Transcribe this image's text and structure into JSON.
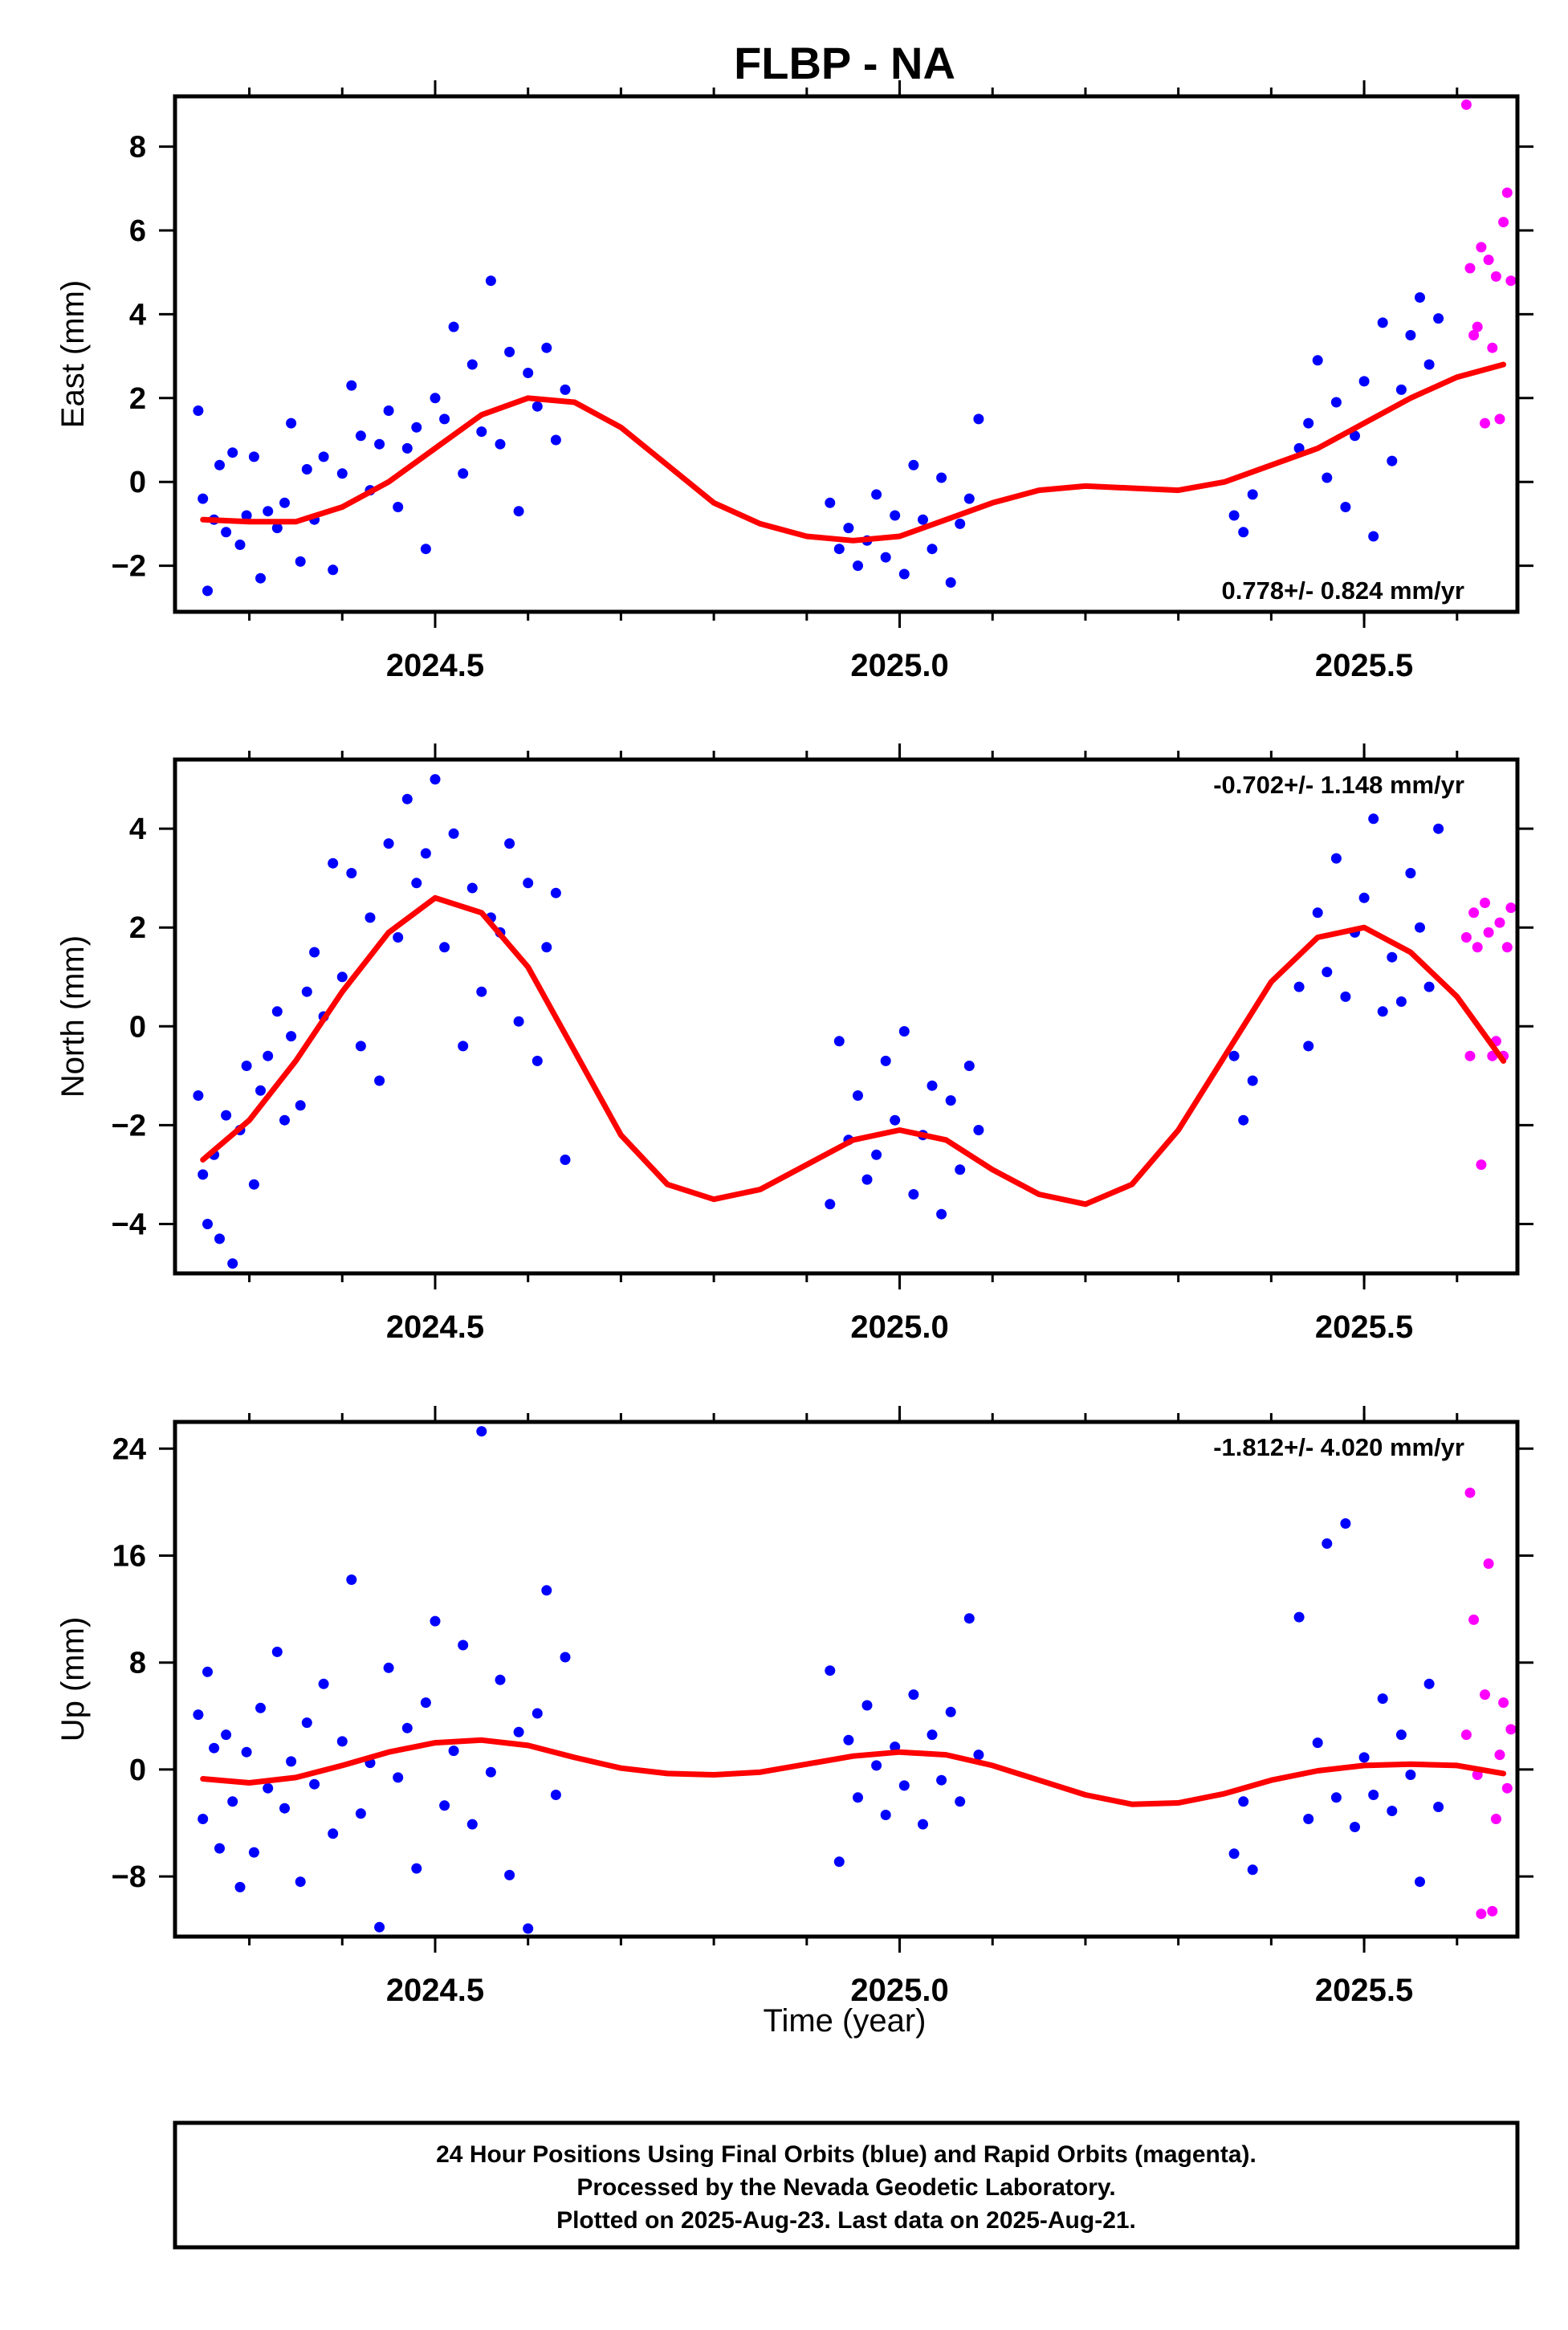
{
  "title": "FLBP - NA",
  "xlabel": "Time (year)",
  "colors": {
    "final": "#0000ff",
    "rapid": "#ff00ff",
    "model": "#ff0000",
    "frame": "#000000"
  },
  "footer": {
    "line1": "24 Hour Positions Using Final Orbits (blue) and Rapid Orbits (magenta).",
    "line2": "Processed by the Nevada Geodetic Laboratory.",
    "line3": "Plotted on 2025-Aug-23. Last data on 2025-Aug-21."
  },
  "chart_data": [
    {
      "type": "scatter",
      "ylabel": "East (mm)",
      "xlim": [
        2024.22,
        2025.665
      ],
      "ylim": [
        -3.1,
        9.2
      ],
      "xticks": [
        2024.5,
        2025.0,
        2025.5
      ],
      "xtick_labels": [
        "2024.5",
        "2025.0",
        "2025.5"
      ],
      "yticks": [
        -2,
        0,
        2,
        4,
        6,
        8
      ],
      "ytick_labels": [
        "−2",
        "0",
        "2",
        "4",
        "6",
        "8"
      ],
      "rate": "0.778+/- 0.824 mm/yr",
      "rate_position": "bottom-right",
      "series": [
        {
          "kind": "final",
          "x": [
            2024.245,
            2024.25,
            2024.255,
            2024.262,
            2024.268,
            2024.275,
            2024.282,
            2024.29,
            2024.297,
            2024.305,
            2024.312,
            2024.32,
            2024.33,
            2024.338,
            2024.345,
            2024.355,
            2024.362,
            2024.37,
            2024.38,
            2024.39,
            2024.4,
            2024.41,
            2024.42,
            2024.43,
            2024.44,
            2024.45,
            2024.46,
            2024.47,
            2024.48,
            2024.49,
            2024.5,
            2024.51,
            2024.52,
            2024.53,
            2024.54,
            2024.55,
            2024.56,
            2024.57,
            2024.58,
            2024.59,
            2024.6,
            2024.61,
            2024.62,
            2024.63,
            2024.64,
            2024.925,
            2024.935,
            2024.945,
            2024.955,
            2024.965,
            2024.975,
            2024.985,
            2024.995,
            2025.005,
            2025.015,
            2025.025,
            2025.035,
            2025.045,
            2025.055,
            2025.065,
            2025.075,
            2025.085,
            2025.36,
            2025.37,
            2025.38,
            2025.43,
            2025.44,
            2025.45,
            2025.46,
            2025.47,
            2025.48,
            2025.49,
            2025.5,
            2025.51,
            2025.52,
            2025.53,
            2025.54,
            2025.55,
            2025.56,
            2025.57,
            2025.58
          ],
          "y": [
            1.7,
            -0.4,
            -2.6,
            -0.9,
            0.4,
            -1.2,
            0.7,
            -1.5,
            -0.8,
            0.6,
            -2.3,
            -0.7,
            -1.1,
            -0.5,
            1.4,
            -1.9,
            0.3,
            -0.9,
            0.6,
            -2.1,
            0.2,
            2.3,
            1.1,
            -0.2,
            0.9,
            1.7,
            -0.6,
            0.8,
            1.3,
            -1.6,
            2.0,
            1.5,
            3.7,
            0.2,
            2.8,
            1.2,
            4.8,
            0.9,
            3.1,
            -0.7,
            2.6,
            1.8,
            3.2,
            1.0,
            2.2,
            -0.5,
            -1.6,
            -1.1,
            -2.0,
            -1.4,
            -0.3,
            -1.8,
            -0.8,
            -2.2,
            0.4,
            -0.9,
            -1.6,
            0.1,
            -2.4,
            -1.0,
            -0.4,
            1.5,
            -0.8,
            -1.2,
            -0.3,
            0.8,
            1.4,
            2.9,
            0.1,
            1.9,
            -0.6,
            1.1,
            2.4,
            -1.3,
            3.8,
            0.5,
            2.2,
            3.5,
            4.4,
            2.8,
            3.9
          ]
        },
        {
          "kind": "rapid",
          "x": [
            2025.61,
            2025.614,
            2025.618,
            2025.622,
            2025.626,
            2025.63,
            2025.634,
            2025.638,
            2025.642,
            2025.646,
            2025.65,
            2025.654,
            2025.658
          ],
          "y": [
            9.0,
            5.1,
            3.5,
            3.7,
            5.6,
            1.4,
            5.3,
            3.2,
            4.9,
            1.5,
            6.2,
            6.9,
            4.8
          ]
        },
        {
          "kind": "model",
          "x": [
            2024.25,
            2024.3,
            2024.35,
            2024.4,
            2024.45,
            2024.5,
            2024.55,
            2024.6,
            2024.65,
            2024.7,
            2024.75,
            2024.8,
            2024.85,
            2024.9,
            2024.95,
            2025.0,
            2025.05,
            2025.1,
            2025.15,
            2025.2,
            2025.25,
            2025.3,
            2025.35,
            2025.4,
            2025.45,
            2025.5,
            2025.55,
            2025.6,
            2025.65
          ],
          "y": [
            -0.9,
            -0.95,
            -0.95,
            -0.6,
            0.0,
            0.8,
            1.6,
            2.0,
            1.9,
            1.3,
            0.4,
            -0.5,
            -1.0,
            -1.3,
            -1.4,
            -1.3,
            -0.9,
            -0.5,
            -0.2,
            -0.1,
            -0.15,
            -0.2,
            0.0,
            0.4,
            0.8,
            1.4,
            2.0,
            2.5,
            2.8
          ]
        }
      ]
    },
    {
      "type": "scatter",
      "ylabel": "North (mm)",
      "xlim": [
        2024.22,
        2025.665
      ],
      "ylim": [
        -5.0,
        5.4
      ],
      "xticks": [
        2024.5,
        2025.0,
        2025.5
      ],
      "xtick_labels": [
        "2024.5",
        "2025.0",
        "2025.5"
      ],
      "yticks": [
        -4,
        -2,
        0,
        2,
        4
      ],
      "ytick_labels": [
        "−4",
        "−2",
        "0",
        "2",
        "4"
      ],
      "rate": "-0.702+/- 1.148 mm/yr",
      "rate_position": "top-right",
      "series": [
        {
          "kind": "final",
          "x": [
            2024.245,
            2024.25,
            2024.255,
            2024.262,
            2024.268,
            2024.275,
            2024.282,
            2024.29,
            2024.297,
            2024.305,
            2024.312,
            2024.32,
            2024.33,
            2024.338,
            2024.345,
            2024.355,
            2024.362,
            2024.37,
            2024.38,
            2024.39,
            2024.4,
            2024.41,
            2024.42,
            2024.43,
            2024.44,
            2024.45,
            2024.46,
            2024.47,
            2024.48,
            2024.49,
            2024.5,
            2024.51,
            2024.52,
            2024.53,
            2024.54,
            2024.55,
            2024.56,
            2024.57,
            2024.58,
            2024.59,
            2024.6,
            2024.61,
            2024.62,
            2024.63,
            2024.64,
            2024.925,
            2024.935,
            2024.945,
            2024.955,
            2024.965,
            2024.975,
            2024.985,
            2024.995,
            2025.005,
            2025.015,
            2025.025,
            2025.035,
            2025.045,
            2025.055,
            2025.065,
            2025.075,
            2025.085,
            2025.36,
            2025.37,
            2025.38,
            2025.43,
            2025.44,
            2025.45,
            2025.46,
            2025.47,
            2025.48,
            2025.49,
            2025.5,
            2025.51,
            2025.52,
            2025.53,
            2025.54,
            2025.55,
            2025.56,
            2025.57,
            2025.58
          ],
          "y": [
            -1.4,
            -3.0,
            -4.0,
            -2.6,
            -4.3,
            -1.8,
            -4.8,
            -2.1,
            -0.8,
            -3.2,
            -1.3,
            -0.6,
            0.3,
            -1.9,
            -0.2,
            -1.6,
            0.7,
            1.5,
            0.2,
            3.3,
            1.0,
            3.1,
            -0.4,
            2.2,
            -1.1,
            3.7,
            1.8,
            4.6,
            2.9,
            3.5,
            5.0,
            1.6,
            3.9,
            -0.4,
            2.8,
            0.7,
            2.2,
            1.9,
            3.7,
            0.1,
            2.9,
            -0.7,
            1.6,
            2.7,
            -2.7,
            -3.6,
            -0.3,
            -2.3,
            -1.4,
            -3.1,
            -2.6,
            -0.7,
            -1.9,
            -0.1,
            -3.4,
            -2.2,
            -1.2,
            -3.8,
            -1.5,
            -2.9,
            -0.8,
            -2.1,
            -0.6,
            -1.9,
            -1.1,
            0.8,
            -0.4,
            2.3,
            1.1,
            3.4,
            0.6,
            1.9,
            2.6,
            4.2,
            0.3,
            1.4,
            0.5,
            3.1,
            2.0,
            0.8,
            4.0
          ]
        },
        {
          "kind": "rapid",
          "x": [
            2025.61,
            2025.614,
            2025.618,
            2025.622,
            2025.626,
            2025.63,
            2025.634,
            2025.638,
            2025.642,
            2025.646,
            2025.65,
            2025.654,
            2025.658
          ],
          "y": [
            1.8,
            -0.6,
            2.3,
            1.6,
            -2.8,
            2.5,
            1.9,
            -0.6,
            -0.3,
            2.1,
            -0.6,
            1.6,
            2.4
          ]
        },
        {
          "kind": "model",
          "x": [
            2024.25,
            2024.3,
            2024.35,
            2024.4,
            2024.45,
            2024.5,
            2024.55,
            2024.6,
            2024.65,
            2024.7,
            2024.75,
            2024.8,
            2024.85,
            2024.9,
            2024.95,
            2025.0,
            2025.05,
            2025.1,
            2025.15,
            2025.2,
            2025.25,
            2025.3,
            2025.35,
            2025.4,
            2025.45,
            2025.5,
            2025.55,
            2025.6,
            2025.65
          ],
          "y": [
            -2.7,
            -1.9,
            -0.7,
            0.7,
            1.9,
            2.6,
            2.3,
            1.2,
            -0.5,
            -2.2,
            -3.2,
            -3.5,
            -3.3,
            -2.8,
            -2.3,
            -2.1,
            -2.3,
            -2.9,
            -3.4,
            -3.6,
            -3.2,
            -2.1,
            -0.6,
            0.9,
            1.8,
            2.0,
            1.5,
            0.6,
            -0.7
          ]
        }
      ]
    },
    {
      "type": "scatter",
      "ylabel": "Up (mm)",
      "xlim": [
        2024.22,
        2025.665
      ],
      "ylim": [
        -12.5,
        26.0
      ],
      "xticks": [
        2024.5,
        2025.0,
        2025.5
      ],
      "xtick_labels": [
        "2024.5",
        "2025.0",
        "2025.5"
      ],
      "yticks": [
        -8,
        0,
        8,
        16,
        24
      ],
      "ytick_labels": [
        "−8",
        "0",
        "8",
        "16",
        "24"
      ],
      "rate": "-1.812+/- 4.020 mm/yr",
      "rate_position": "top-right",
      "series": [
        {
          "kind": "final",
          "x": [
            2024.245,
            2024.25,
            2024.255,
            2024.262,
            2024.268,
            2024.275,
            2024.282,
            2024.29,
            2024.297,
            2024.305,
            2024.312,
            2024.32,
            2024.33,
            2024.338,
            2024.345,
            2024.355,
            2024.362,
            2024.37,
            2024.38,
            2024.39,
            2024.4,
            2024.41,
            2024.42,
            2024.43,
            2024.44,
            2024.45,
            2024.46,
            2024.47,
            2024.48,
            2024.49,
            2024.5,
            2024.51,
            2024.52,
            2024.53,
            2024.54,
            2024.55,
            2024.56,
            2024.57,
            2024.58,
            2024.59,
            2024.6,
            2024.61,
            2024.62,
            2024.63,
            2024.64,
            2024.925,
            2024.935,
            2024.945,
            2024.955,
            2024.965,
            2024.975,
            2024.985,
            2024.995,
            2025.005,
            2025.015,
            2025.025,
            2025.035,
            2025.045,
            2025.055,
            2025.065,
            2025.075,
            2025.085,
            2025.36,
            2025.37,
            2025.38,
            2025.43,
            2025.44,
            2025.45,
            2025.46,
            2025.47,
            2025.48,
            2025.49,
            2025.5,
            2025.51,
            2025.52,
            2025.53,
            2025.54,
            2025.55,
            2025.56,
            2025.57,
            2025.58
          ],
          "y": [
            4.1,
            -3.7,
            7.3,
            1.6,
            -5.9,
            2.6,
            -2.4,
            -8.8,
            1.3,
            -6.2,
            4.6,
            -1.4,
            8.8,
            -2.9,
            0.6,
            -8.4,
            3.5,
            -1.1,
            6.4,
            -4.8,
            2.1,
            14.2,
            -3.3,
            0.5,
            -11.8,
            7.6,
            -0.6,
            3.1,
            -7.4,
            5.0,
            11.1,
            -2.7,
            1.4,
            9.3,
            -4.1,
            25.3,
            -0.2,
            6.7,
            -7.9,
            2.8,
            -11.9,
            4.2,
            13.4,
            -1.9,
            8.4,
            7.4,
            -6.9,
            2.2,
            -2.1,
            4.8,
            0.3,
            -3.4,
            1.7,
            -1.2,
            5.6,
            -4.1,
            2.6,
            -0.8,
            4.3,
            -2.4,
            11.3,
            1.1,
            -6.3,
            -2.4,
            -7.5,
            11.4,
            -3.7,
            2.0,
            16.9,
            -2.1,
            18.4,
            -4.3,
            0.9,
            -1.9,
            5.3,
            -3.1,
            2.6,
            -0.4,
            -8.4,
            6.4,
            -2.8
          ]
        },
        {
          "kind": "rapid",
          "x": [
            2025.61,
            2025.614,
            2025.618,
            2025.622,
            2025.626,
            2025.63,
            2025.634,
            2025.638,
            2025.642,
            2025.646,
            2025.65,
            2025.654,
            2025.658
          ],
          "y": [
            2.6,
            20.7,
            11.2,
            -0.4,
            -10.8,
            5.6,
            15.4,
            -10.6,
            -3.7,
            1.1,
            5.0,
            -1.4,
            3.0
          ]
        },
        {
          "kind": "model",
          "x": [
            2024.25,
            2024.3,
            2024.35,
            2024.4,
            2024.45,
            2024.5,
            2024.55,
            2024.6,
            2024.65,
            2024.7,
            2024.75,
            2024.8,
            2024.85,
            2024.9,
            2024.95,
            2025.0,
            2025.05,
            2025.1,
            2025.15,
            2025.2,
            2025.25,
            2025.3,
            2025.35,
            2025.4,
            2025.45,
            2025.5,
            2025.55,
            2025.6,
            2025.65
          ],
          "y": [
            -0.7,
            -1.0,
            -0.6,
            0.3,
            1.3,
            2.0,
            2.2,
            1.8,
            0.9,
            0.1,
            -0.3,
            -0.4,
            -0.2,
            0.4,
            1.0,
            1.3,
            1.1,
            0.3,
            -0.8,
            -1.9,
            -2.6,
            -2.5,
            -1.8,
            -0.8,
            -0.1,
            0.3,
            0.4,
            0.3,
            -0.3
          ]
        }
      ]
    }
  ]
}
